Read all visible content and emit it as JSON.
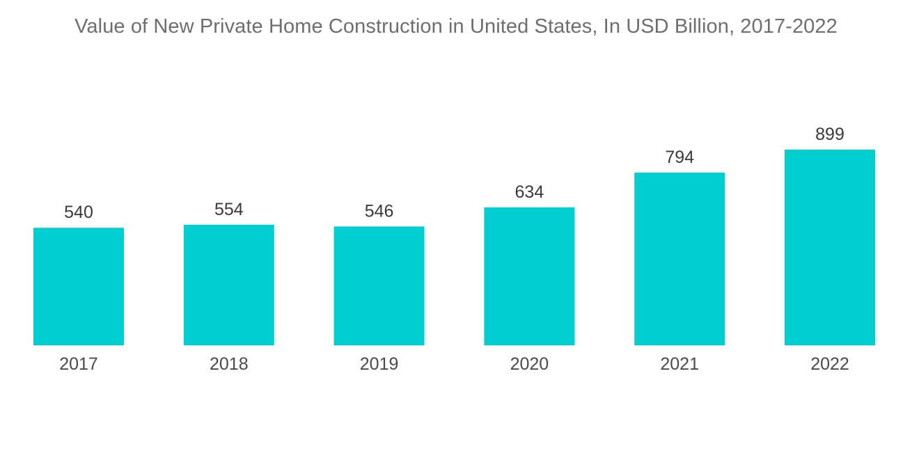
{
  "chart_data": {
    "type": "bar",
    "title": "Value of New Private Home Construction in United States, In USD Billion, 2017-2022",
    "categories": [
      "2017",
      "2018",
      "2019",
      "2020",
      "2021",
      "2022"
    ],
    "values": [
      540,
      554,
      546,
      634,
      794,
      899
    ],
    "xlabel": "",
    "ylabel": "",
    "ylim": [
      0,
      899
    ],
    "grid": false,
    "legend": "none",
    "data_labels": true,
    "colors": {
      "bar": "#00ced1",
      "label": "#3a3a3a",
      "tick": "#4a4a4a",
      "title": "#6e6e6e"
    }
  }
}
